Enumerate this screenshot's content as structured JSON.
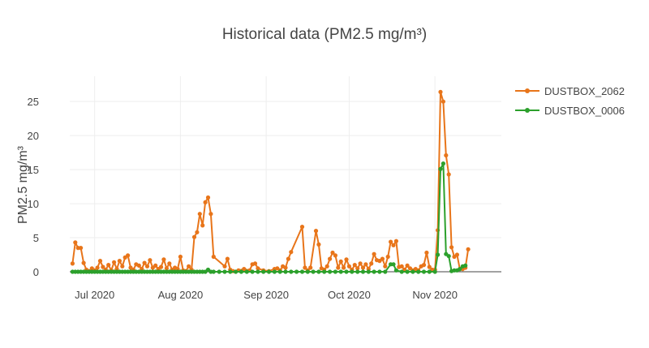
{
  "chart_data": {
    "type": "line",
    "title": "Historical data (PM2.5 mg/m³)",
    "xlabel": "",
    "ylabel": "PM2.5 mg/m³",
    "x_range": [
      "2020-06-22",
      "2020-11-25"
    ],
    "ylim": [
      0,
      28
    ],
    "x_ticks": [
      {
        "date": "2020-07-01",
        "label": "Jul 2020"
      },
      {
        "date": "2020-08-01",
        "label": "Aug 2020"
      },
      {
        "date": "2020-09-01",
        "label": "Sep 2020"
      },
      {
        "date": "2020-10-01",
        "label": "Oct 2020"
      },
      {
        "date": "2020-11-01",
        "label": "Nov 2020"
      }
    ],
    "y_ticks": [
      0,
      5,
      10,
      15,
      20,
      25
    ],
    "grid": true,
    "legend_position": "top-right",
    "series": [
      {
        "name": "DUSTBOX_2062",
        "color": "#e8751a",
        "points": [
          [
            "2020-06-23",
            1.2
          ],
          [
            "2020-06-24",
            4.3
          ],
          [
            "2020-06-25",
            3.5
          ],
          [
            "2020-06-26",
            3.5
          ],
          [
            "2020-06-27",
            1.3
          ],
          [
            "2020-06-28",
            0.3
          ],
          [
            "2020-06-29",
            0.1
          ],
          [
            "2020-06-30",
            0.5
          ],
          [
            "2020-07-01",
            0.2
          ],
          [
            "2020-07-02",
            0.6
          ],
          [
            "2020-07-03",
            1.6
          ],
          [
            "2020-07-04",
            0.7
          ],
          [
            "2020-07-05",
            0.3
          ],
          [
            "2020-07-06",
            1.0
          ],
          [
            "2020-07-07",
            0.2
          ],
          [
            "2020-07-08",
            1.4
          ],
          [
            "2020-07-09",
            0.4
          ],
          [
            "2020-07-10",
            1.6
          ],
          [
            "2020-07-11",
            0.8
          ],
          [
            "2020-07-12",
            2.1
          ],
          [
            "2020-07-13",
            2.4
          ],
          [
            "2020-07-14",
            0.6
          ],
          [
            "2020-07-15",
            0.3
          ],
          [
            "2020-07-16",
            1.1
          ],
          [
            "2020-07-17",
            0.9
          ],
          [
            "2020-07-18",
            0.4
          ],
          [
            "2020-07-19",
            1.3
          ],
          [
            "2020-07-20",
            0.8
          ],
          [
            "2020-07-21",
            1.7
          ],
          [
            "2020-07-22",
            0.6
          ],
          [
            "2020-07-23",
            0.9
          ],
          [
            "2020-07-24",
            0.4
          ],
          [
            "2020-07-25",
            0.7
          ],
          [
            "2020-07-26",
            1.8
          ],
          [
            "2020-07-27",
            0.5
          ],
          [
            "2020-07-28",
            1.2
          ],
          [
            "2020-07-29",
            0.3
          ],
          [
            "2020-07-30",
            0.6
          ],
          [
            "2020-07-31",
            0.4
          ],
          [
            "2020-08-01",
            2.2
          ],
          [
            "2020-08-02",
            0.2
          ],
          [
            "2020-08-03",
            0.1
          ],
          [
            "2020-08-04",
            0.8
          ],
          [
            "2020-08-05",
            0.3
          ],
          [
            "2020-08-06",
            5.1
          ],
          [
            "2020-08-07",
            5.8
          ],
          [
            "2020-08-08",
            8.5
          ],
          [
            "2020-08-09",
            6.8
          ],
          [
            "2020-08-10",
            10.2
          ],
          [
            "2020-08-11",
            10.9
          ],
          [
            "2020-08-12",
            8.5
          ],
          [
            "2020-08-13",
            2.2
          ],
          [
            "2020-08-17",
            0.8
          ],
          [
            "2020-08-18",
            1.9
          ],
          [
            "2020-08-19",
            0.3
          ],
          [
            "2020-08-20",
            0.1
          ],
          [
            "2020-08-22",
            0.2
          ],
          [
            "2020-08-24",
            0.4
          ],
          [
            "2020-08-26",
            0.2
          ],
          [
            "2020-08-27",
            1.1
          ],
          [
            "2020-08-28",
            1.2
          ],
          [
            "2020-08-29",
            0.5
          ],
          [
            "2020-08-31",
            0.2
          ],
          [
            "2020-09-02",
            0.1
          ],
          [
            "2020-09-04",
            0.4
          ],
          [
            "2020-09-05",
            0.5
          ],
          [
            "2020-09-06",
            0.2
          ],
          [
            "2020-09-07",
            0.8
          ],
          [
            "2020-09-08",
            0.6
          ],
          [
            "2020-09-09",
            1.9
          ],
          [
            "2020-09-10",
            2.9
          ],
          [
            "2020-09-14",
            6.6
          ],
          [
            "2020-09-15",
            0.6
          ],
          [
            "2020-09-16",
            0.2
          ],
          [
            "2020-09-17",
            0.6
          ],
          [
            "2020-09-19",
            6.0
          ],
          [
            "2020-09-20",
            4.0
          ],
          [
            "2020-09-21",
            0.5
          ],
          [
            "2020-09-22",
            0.3
          ],
          [
            "2020-09-23",
            0.8
          ],
          [
            "2020-09-24",
            1.9
          ],
          [
            "2020-09-25",
            2.8
          ],
          [
            "2020-09-26",
            2.4
          ],
          [
            "2020-09-27",
            0.6
          ],
          [
            "2020-09-28",
            1.5
          ],
          [
            "2020-09-29",
            0.6
          ],
          [
            "2020-09-30",
            1.8
          ],
          [
            "2020-10-01",
            0.8
          ],
          [
            "2020-10-02",
            0.3
          ],
          [
            "2020-10-03",
            1.0
          ],
          [
            "2020-10-04",
            0.5
          ],
          [
            "2020-10-05",
            1.2
          ],
          [
            "2020-10-06",
            0.6
          ],
          [
            "2020-10-07",
            1.1
          ],
          [
            "2020-10-08",
            0.4
          ],
          [
            "2020-10-09",
            1.2
          ],
          [
            "2020-10-10",
            2.6
          ],
          [
            "2020-10-11",
            1.7
          ],
          [
            "2020-10-12",
            1.6
          ],
          [
            "2020-10-13",
            1.9
          ],
          [
            "2020-10-14",
            0.8
          ],
          [
            "2020-10-15",
            2.2
          ],
          [
            "2020-10-16",
            4.4
          ],
          [
            "2020-10-17",
            3.9
          ],
          [
            "2020-10-18",
            4.5
          ],
          [
            "2020-10-19",
            0.7
          ],
          [
            "2020-10-20",
            0.8
          ],
          [
            "2020-10-21",
            0.3
          ],
          [
            "2020-10-22",
            0.9
          ],
          [
            "2020-10-23",
            0.5
          ],
          [
            "2020-10-24",
            0.2
          ],
          [
            "2020-10-25",
            0.4
          ],
          [
            "2020-10-26",
            0.2
          ],
          [
            "2020-10-27",
            0.8
          ],
          [
            "2020-10-28",
            1.0
          ],
          [
            "2020-10-29",
            2.8
          ],
          [
            "2020-10-30",
            0.7
          ],
          [
            "2020-10-31",
            0.3
          ],
          [
            "2020-11-01",
            0.3
          ],
          [
            "2020-11-02",
            6.1
          ],
          [
            "2020-11-03",
            26.4
          ],
          [
            "2020-11-04",
            25.0
          ],
          [
            "2020-11-05",
            17.1
          ],
          [
            "2020-11-06",
            14.3
          ],
          [
            "2020-11-07",
            3.6
          ],
          [
            "2020-11-08",
            2.2
          ],
          [
            "2020-11-09",
            2.5
          ],
          [
            "2020-11-10",
            0.4
          ],
          [
            "2020-11-11",
            0.4
          ],
          [
            "2020-11-12",
            0.6
          ],
          [
            "2020-11-13",
            3.3
          ]
        ]
      },
      {
        "name": "DUSTBOX_0006",
        "color": "#2ca02c",
        "points": [
          [
            "2020-06-23",
            0.0
          ],
          [
            "2020-06-24",
            0.0
          ],
          [
            "2020-06-25",
            0.0
          ],
          [
            "2020-06-26",
            0.0
          ],
          [
            "2020-06-27",
            0.0
          ],
          [
            "2020-06-28",
            0.0
          ],
          [
            "2020-06-29",
            0.0
          ],
          [
            "2020-06-30",
            0.0
          ],
          [
            "2020-07-01",
            0.0
          ],
          [
            "2020-07-02",
            0.0
          ],
          [
            "2020-07-03",
            0.0
          ],
          [
            "2020-07-04",
            0.0
          ],
          [
            "2020-07-05",
            0.0
          ],
          [
            "2020-07-06",
            0.0
          ],
          [
            "2020-07-07",
            0.0
          ],
          [
            "2020-07-08",
            0.0
          ],
          [
            "2020-07-09",
            0.0
          ],
          [
            "2020-07-10",
            0.0
          ],
          [
            "2020-07-11",
            0.0
          ],
          [
            "2020-07-12",
            0.0
          ],
          [
            "2020-07-13",
            0.0
          ],
          [
            "2020-07-14",
            0.0
          ],
          [
            "2020-07-15",
            0.0
          ],
          [
            "2020-07-16",
            0.0
          ],
          [
            "2020-07-17",
            0.0
          ],
          [
            "2020-07-18",
            0.0
          ],
          [
            "2020-07-19",
            0.0
          ],
          [
            "2020-07-20",
            0.0
          ],
          [
            "2020-07-21",
            0.0
          ],
          [
            "2020-07-22",
            0.0
          ],
          [
            "2020-07-23",
            0.0
          ],
          [
            "2020-07-24",
            0.0
          ],
          [
            "2020-07-25",
            0.0
          ],
          [
            "2020-07-26",
            0.0
          ],
          [
            "2020-07-27",
            0.0
          ],
          [
            "2020-07-28",
            0.0
          ],
          [
            "2020-07-29",
            0.0
          ],
          [
            "2020-07-30",
            0.0
          ],
          [
            "2020-07-31",
            0.0
          ],
          [
            "2020-08-01",
            0.0
          ],
          [
            "2020-08-02",
            0.0
          ],
          [
            "2020-08-03",
            0.0
          ],
          [
            "2020-08-04",
            0.0
          ],
          [
            "2020-08-05",
            0.0
          ],
          [
            "2020-08-06",
            0.0
          ],
          [
            "2020-08-07",
            0.0
          ],
          [
            "2020-08-08",
            0.0
          ],
          [
            "2020-08-09",
            0.0
          ],
          [
            "2020-08-10",
            0.0
          ],
          [
            "2020-08-11",
            0.3
          ],
          [
            "2020-08-12",
            0.0
          ],
          [
            "2020-08-13",
            0.0
          ],
          [
            "2020-08-15",
            0.0
          ],
          [
            "2020-08-17",
            0.0
          ],
          [
            "2020-08-19",
            0.0
          ],
          [
            "2020-08-21",
            0.0
          ],
          [
            "2020-08-23",
            0.0
          ],
          [
            "2020-08-25",
            0.0
          ],
          [
            "2020-08-27",
            0.0
          ],
          [
            "2020-08-29",
            0.0
          ],
          [
            "2020-08-31",
            0.0
          ],
          [
            "2020-09-02",
            0.0
          ],
          [
            "2020-09-04",
            0.0
          ],
          [
            "2020-09-06",
            0.0
          ],
          [
            "2020-09-08",
            0.0
          ],
          [
            "2020-09-10",
            0.0
          ],
          [
            "2020-09-12",
            0.0
          ],
          [
            "2020-09-14",
            0.0
          ],
          [
            "2020-09-16",
            0.0
          ],
          [
            "2020-09-18",
            0.0
          ],
          [
            "2020-09-20",
            0.0
          ],
          [
            "2020-09-22",
            0.0
          ],
          [
            "2020-09-24",
            0.0
          ],
          [
            "2020-09-26",
            0.0
          ],
          [
            "2020-09-28",
            0.0
          ],
          [
            "2020-09-30",
            0.0
          ],
          [
            "2020-10-02",
            0.0
          ],
          [
            "2020-10-04",
            0.0
          ],
          [
            "2020-10-06",
            0.0
          ],
          [
            "2020-10-08",
            0.0
          ],
          [
            "2020-10-10",
            0.0
          ],
          [
            "2020-10-12",
            0.0
          ],
          [
            "2020-10-14",
            0.0
          ],
          [
            "2020-10-16",
            1.1
          ],
          [
            "2020-10-17",
            1.1
          ],
          [
            "2020-10-18",
            0.2
          ],
          [
            "2020-10-20",
            0.0
          ],
          [
            "2020-10-22",
            0.0
          ],
          [
            "2020-10-24",
            0.0
          ],
          [
            "2020-10-26",
            0.0
          ],
          [
            "2020-10-28",
            0.0
          ],
          [
            "2020-10-30",
            0.0
          ],
          [
            "2020-11-01",
            0.0
          ],
          [
            "2020-11-02",
            2.5
          ],
          [
            "2020-11-03",
            15.1
          ],
          [
            "2020-11-04",
            15.9
          ],
          [
            "2020-11-05",
            2.6
          ],
          [
            "2020-11-06",
            2.3
          ],
          [
            "2020-11-07",
            0.1
          ],
          [
            "2020-11-08",
            0.2
          ],
          [
            "2020-11-09",
            0.2
          ],
          [
            "2020-11-10",
            0.4
          ],
          [
            "2020-11-11",
            0.8
          ],
          [
            "2020-11-12",
            0.9
          ]
        ]
      }
    ]
  }
}
